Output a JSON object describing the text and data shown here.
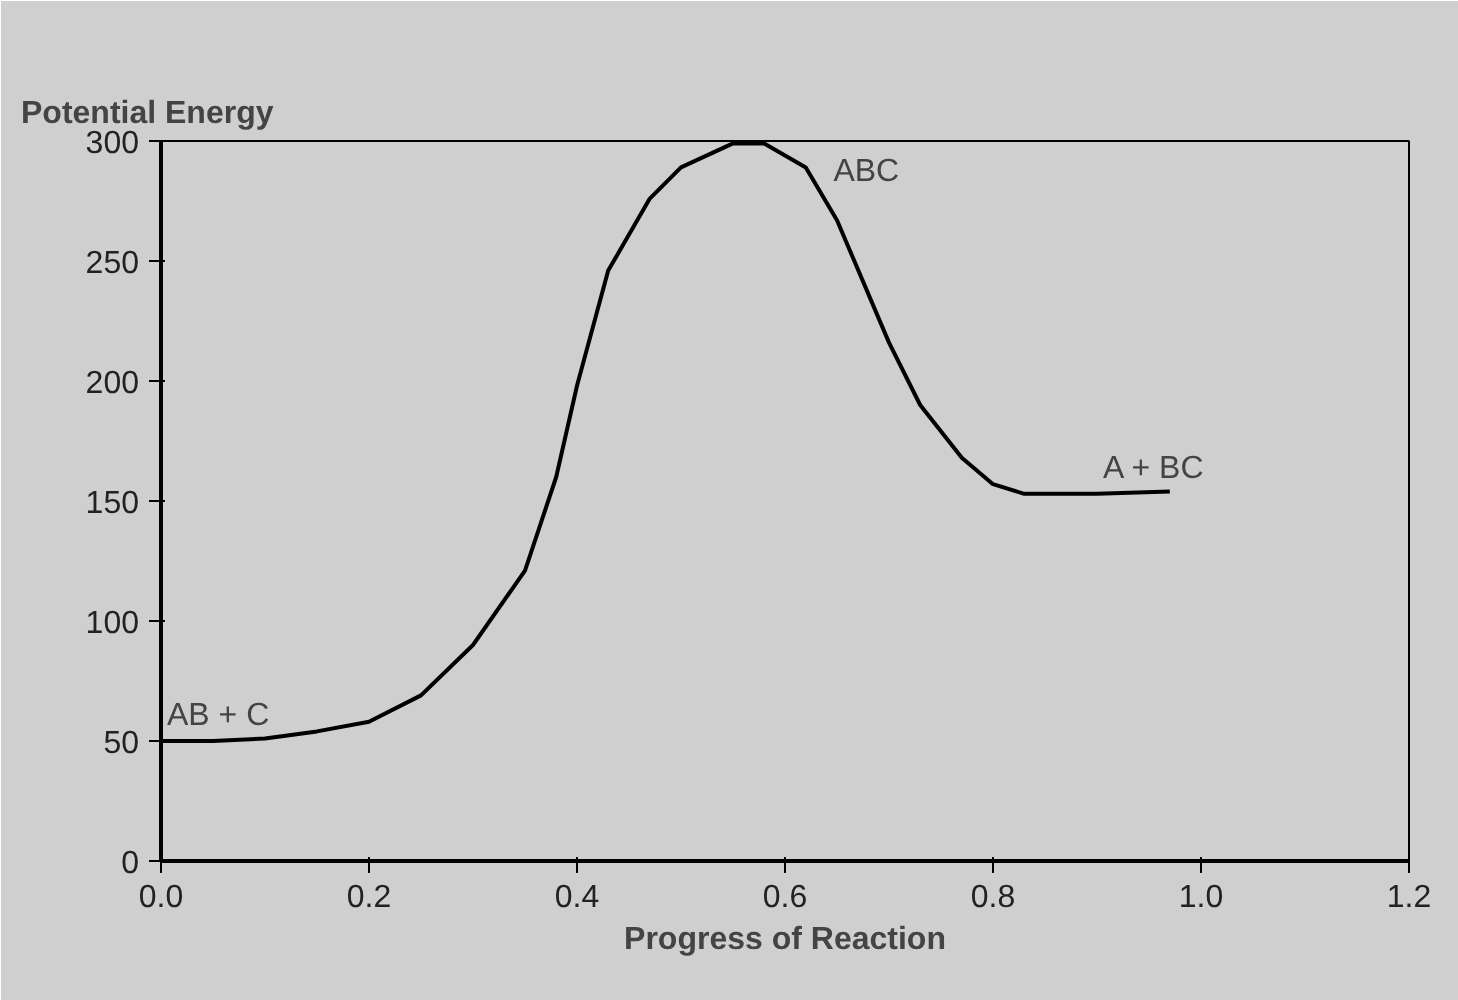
{
  "chart_data": {
    "type": "line",
    "xlabel": "Progress of Reaction",
    "ylabel": "Potential Energy",
    "x": [
      0,
      0.05,
      0.1,
      0.15,
      0.2,
      0.25,
      0.3,
      0.35,
      0.38,
      0.4,
      0.43,
      0.47,
      0.5,
      0.55,
      0.58,
      0.62,
      0.65,
      0.7,
      0.73,
      0.77,
      0.8,
      0.83,
      0.9,
      0.97
    ],
    "series": [
      {
        "color": "#000000",
        "values": [
          50,
          50,
          51,
          54,
          58,
          69,
          90,
          121,
          160,
          198,
          246,
          276,
          289,
          299,
          299,
          289,
          267,
          216,
          190,
          168,
          157,
          153,
          153,
          154
        ]
      }
    ],
    "xlim": [
      0,
      1.2
    ],
    "xticks": [
      {
        "value": 0,
        "label": "0.0"
      },
      {
        "value": 0.2,
        "label": "0.2"
      },
      {
        "value": 0.4,
        "label": "0.4"
      },
      {
        "value": 0.6,
        "label": "0.6"
      },
      {
        "value": 0.8,
        "label": "0.8"
      },
      {
        "value": 1.0,
        "label": "1.0"
      },
      {
        "value": 1.2,
        "label": "1.2"
      }
    ],
    "ylim": [
      0,
      300
    ],
    "yticks": [
      0,
      50,
      100,
      150,
      200,
      250,
      300
    ],
    "grid": false,
    "marker": "none",
    "line_style": "solid",
    "annotations": [
      {
        "text": "AB + C",
        "x": 0,
        "y": 50
      },
      {
        "text": "ABC",
        "x": 0.56,
        "y": 300
      },
      {
        "text": "A + BC",
        "x": 0.9,
        "y": 153
      }
    ]
  }
}
